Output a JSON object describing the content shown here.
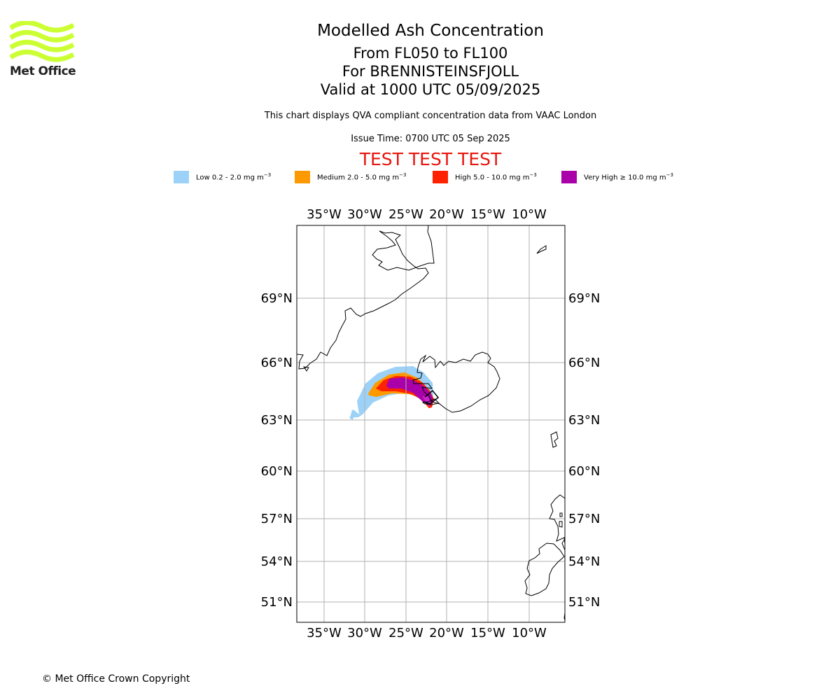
{
  "header": {
    "logo_text": "Met Office",
    "logo_color": "#ccff33",
    "title": "Modelled Ash Concentration",
    "levels": "From FL050 to FL100",
    "volcano": "For BRENNISTEINSFJOLL",
    "valid": "Valid at 1000 UTC 05/09/2025",
    "description": "This chart displays QVA compliant concentration data from VAAC London",
    "issue_time": "Issue Time: 0700 UTC 05 Sep 2025",
    "test_banner": "TEST TEST TEST",
    "test_banner_color": "#e8150e"
  },
  "legend": [
    {
      "label": "Low 0.2 - 2.0 mg m",
      "unit_exp": "−3",
      "color": "#9dd2f8"
    },
    {
      "label": "Medium 2.0 - 5.0 mg m",
      "unit_exp": "−3",
      "color": "#ff9900"
    },
    {
      "label": "High 5.0 - 10.0 mg m",
      "unit_exp": "−3",
      "color": "#ff2200"
    },
    {
      "label": "Very High  ≥  10.0 mg m",
      "unit_exp": "−3",
      "color": "#aa00aa"
    }
  ],
  "map": {
    "lon_ticks": [
      "35°W",
      "30°W",
      "25°W",
      "20°W",
      "15°W",
      "10°W"
    ],
    "lat_ticks": [
      "69°N",
      "66°N",
      "63°N",
      "60°N",
      "57°N",
      "54°N",
      "51°N"
    ],
    "grid": true,
    "coastline_color": "#000000",
    "grid_color": "#b0b0b0"
  },
  "footer": {
    "copyright": "© Met Office Crown Copyright"
  }
}
